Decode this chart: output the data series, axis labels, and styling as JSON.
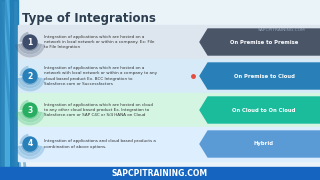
{
  "title": "Type of Integrations",
  "watermark": "SAPCPITRAINING.COM",
  "footer": "SAPCPITRAINING.COM",
  "bg_color": "#eaf3f8",
  "title_color": "#2c3e50",
  "rows": [
    {
      "number": "1",
      "number_bg": "#3d4d6b",
      "swirl_color": "#3d4d6b",
      "text": "Integration of applications which are hosted on a\nnetwork in local network or within a company. Ex: File\nto File Integration",
      "label": "On Premise to Premise",
      "label_bg": "#4a5568",
      "row_bg": "#dde6ee"
    },
    {
      "number": "2",
      "number_bg": "#2980b9",
      "swirl_color": "#2980b9",
      "text": "Integration of applications which are hosted on a\nnetwork with local network or within a company to any\ncloud based product Ex. BCC Integration to\nSalesforce.com or Successfactors",
      "label": "On Premise to Cloud",
      "label_bg": "#2980b9",
      "row_bg": "#d6eaf8"
    },
    {
      "number": "3",
      "number_bg": "#27ae60",
      "swirl_color": "#27ae60",
      "text": "Integration of applications which are hosted on cloud\nto any other cloud based product Ex. Integration to\nSalesforce.com or SAP C4C or S/4 HANA on Cloud",
      "label": "On Cloud to On Cloud",
      "label_bg": "#1abc9c",
      "row_bg": "#d5f5e3"
    },
    {
      "number": "4",
      "number_bg": "#2980b9",
      "swirl_color": "#2980b9",
      "text": "Integration of applications and cloud based products a\ncombination of above options.",
      "label": "Hybrid",
      "label_bg": "#5b9bd5",
      "row_bg": "#ddeeff"
    }
  ]
}
